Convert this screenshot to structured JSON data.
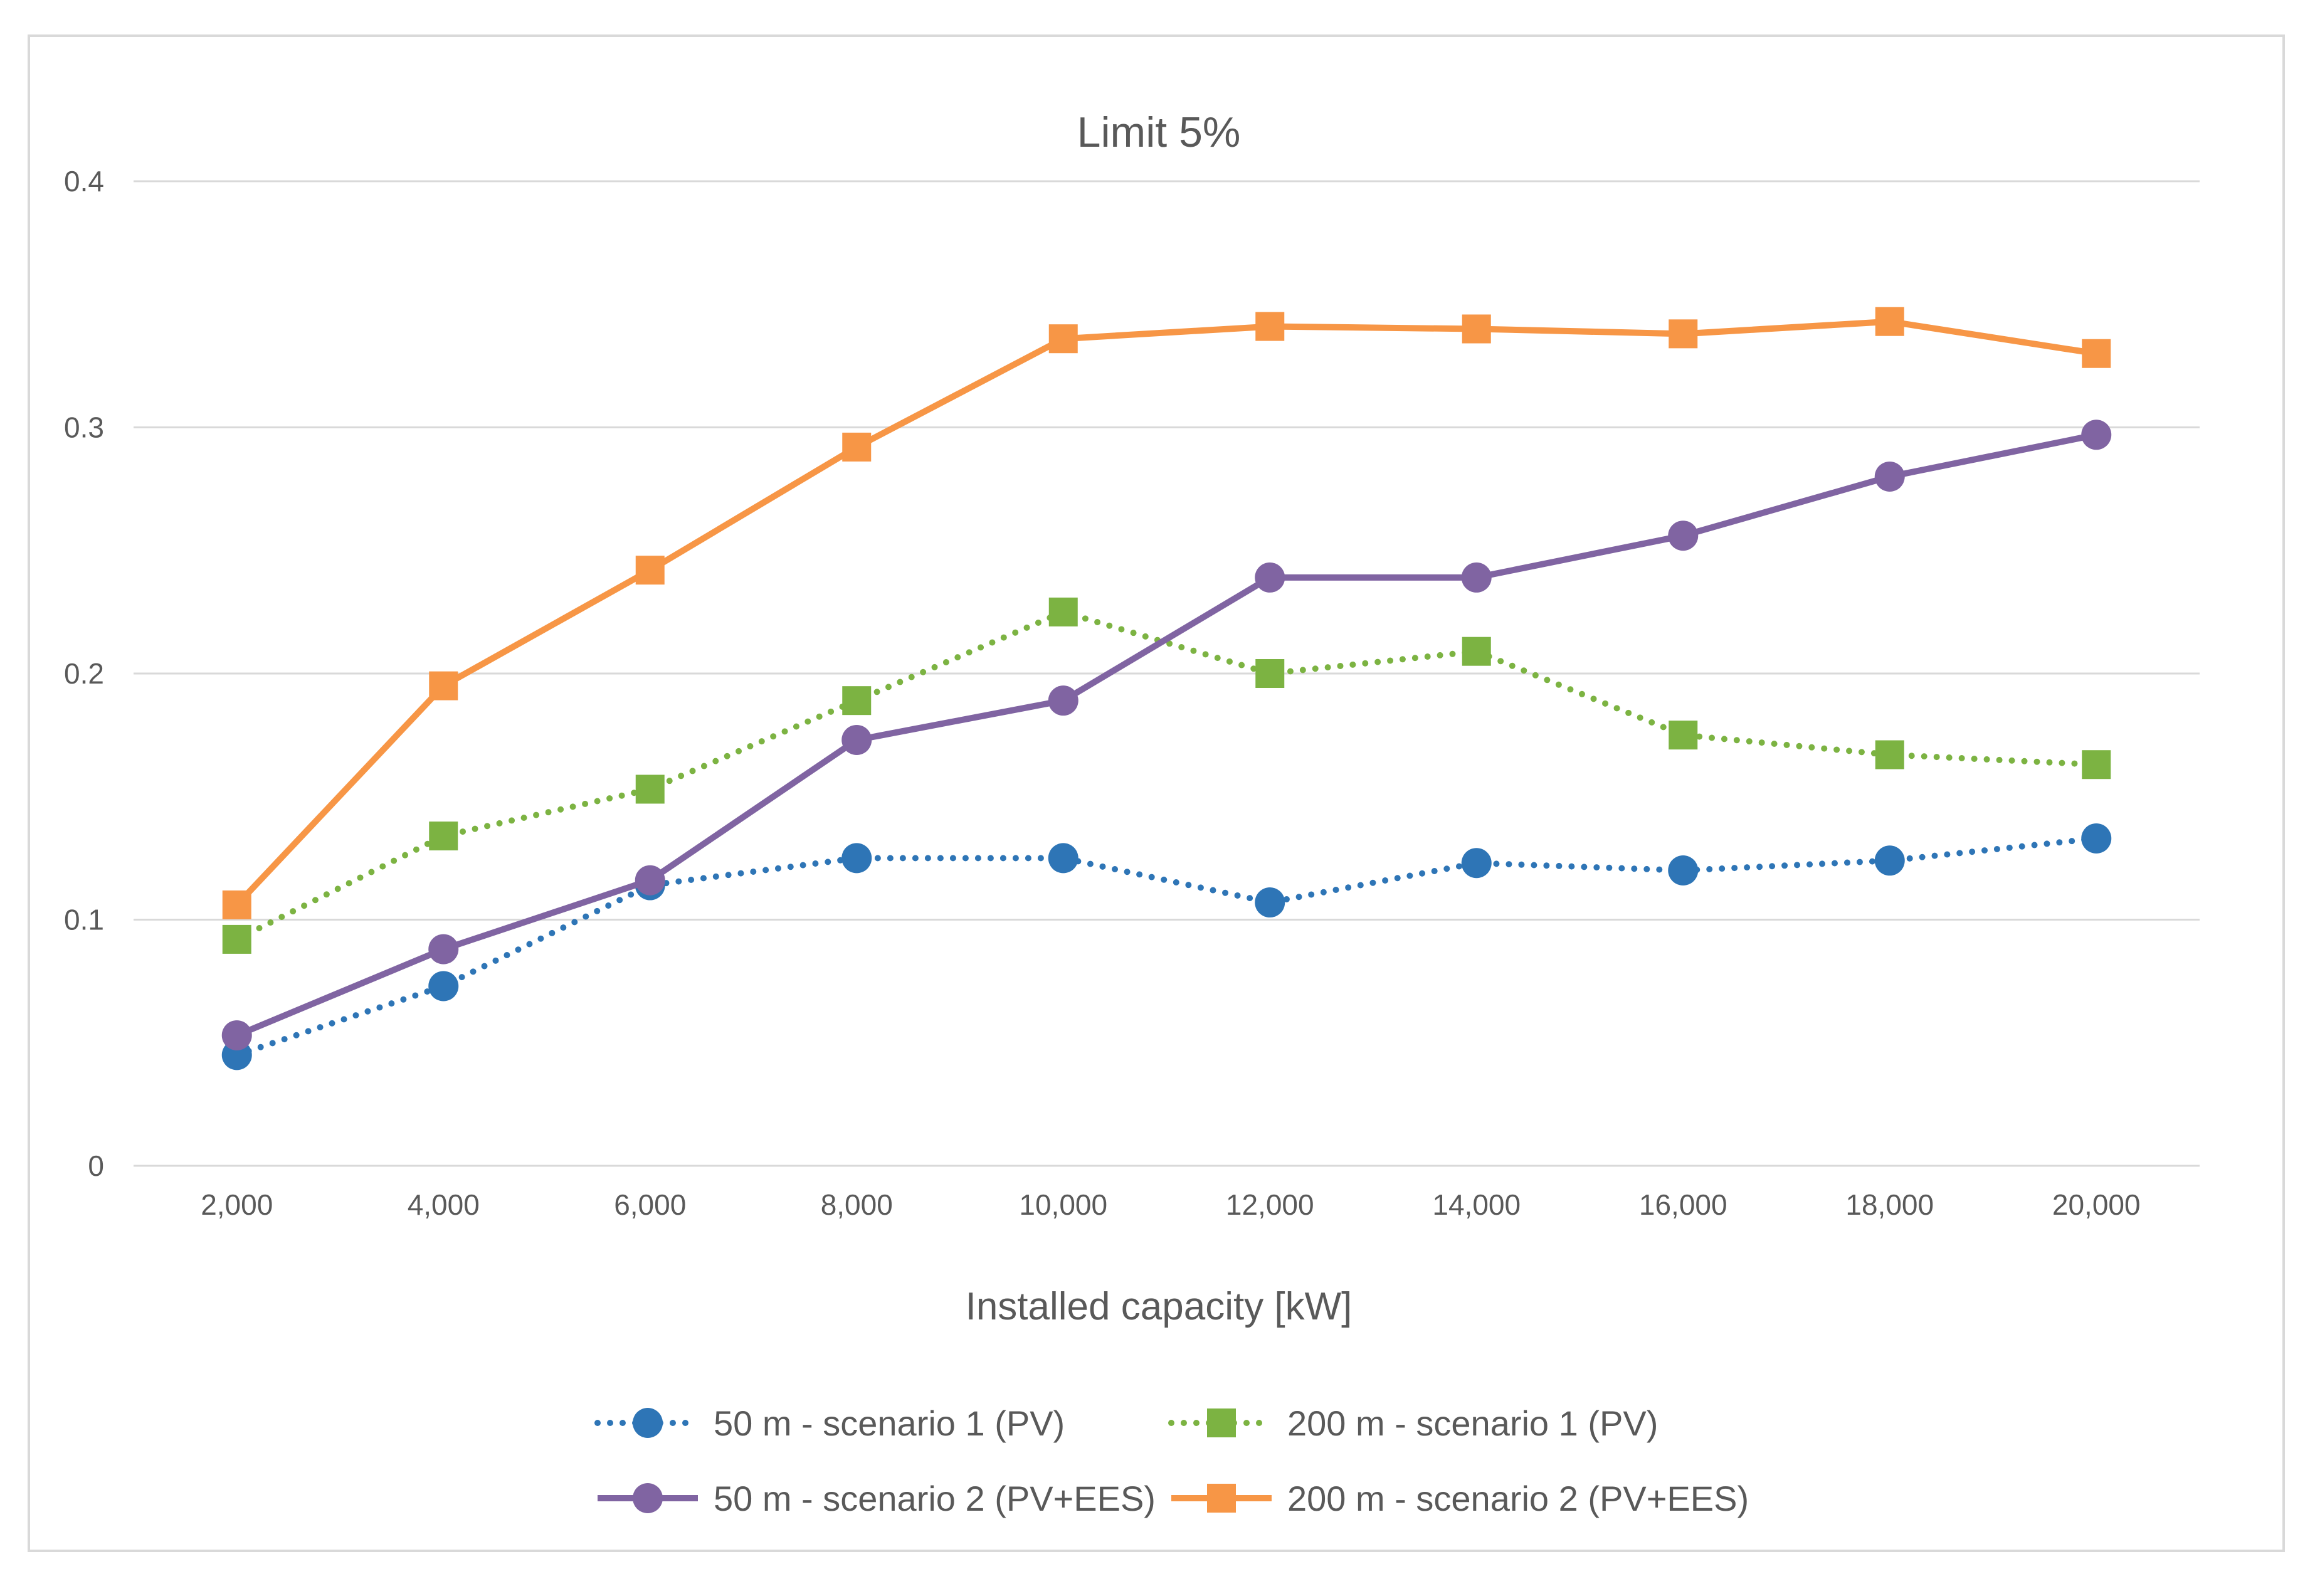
{
  "chart_data": {
    "type": "line",
    "title": "Limit 5%",
    "xlabel": "Installed capacity [kW]",
    "ylabel": "",
    "categories": [
      "2,000",
      "4,000",
      "6,000",
      "8,000",
      "10,000",
      "12,000",
      "14,000",
      "16,000",
      "18,000",
      "20,000"
    ],
    "ylim": [
      0,
      0.4
    ],
    "yticks": [
      0,
      0.1,
      0.2,
      0.3,
      0.4
    ],
    "ytick_labels": [
      "0",
      "0.1",
      "0.2",
      "0.3",
      "0.4"
    ],
    "grid": true,
    "legend_position": "bottom",
    "series": [
      {
        "name": "50 m - scenario 1 (PV)",
        "color": "#2e75b6",
        "line": "dotted",
        "marker": "circle",
        "values": [
          0.045,
          0.073,
          0.114,
          0.125,
          0.125,
          0.107,
          0.123,
          0.12,
          0.124,
          0.133
        ]
      },
      {
        "name": "200 m - scenario 1 (PV)",
        "color": "#7cb342",
        "line": "dotted",
        "marker": "square",
        "values": [
          0.092,
          0.134,
          0.153,
          0.189,
          0.225,
          0.2,
          0.209,
          0.175,
          0.167,
          0.163
        ]
      },
      {
        "name": "50 m - scenario 2 (PV+EES)",
        "color": "#8064a2",
        "line": "solid",
        "marker": "circle",
        "values": [
          0.053,
          0.088,
          0.116,
          0.173,
          0.189,
          0.239,
          0.239,
          0.256,
          0.28,
          0.297
        ]
      },
      {
        "name": "200 m - scenario 2 (PV+EES)",
        "color": "#f79646",
        "line": "solid",
        "marker": "square",
        "values": [
          0.106,
          0.195,
          0.242,
          0.292,
          0.336,
          0.341,
          0.34,
          0.338,
          0.343,
          0.33
        ]
      }
    ]
  }
}
